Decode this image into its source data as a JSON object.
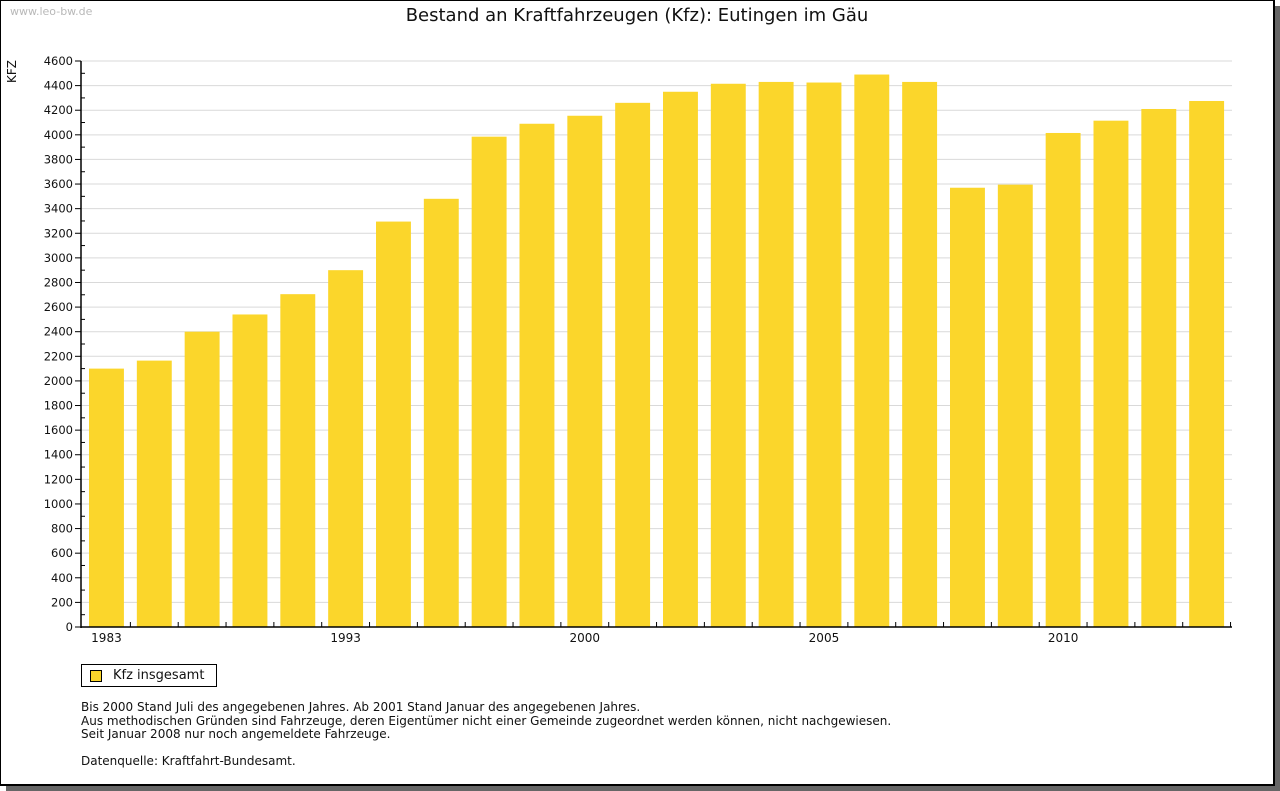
{
  "watermark": "www.leo-bw.de",
  "chart_data": {
    "type": "bar",
    "title": "Bestand an Kraftfahrzeugen (Kfz): Eutingen im Gäu",
    "xlabel": "",
    "ylabel": "KFZ",
    "ylim": [
      0,
      4600
    ],
    "yticks": [
      0,
      200,
      400,
      600,
      800,
      1000,
      1200,
      1400,
      1600,
      1800,
      2000,
      2200,
      2400,
      2600,
      2800,
      3000,
      3200,
      3400,
      3600,
      3800,
      4000,
      4200,
      4400,
      4600
    ],
    "grid": true,
    "legend_position": "bottom-left",
    "categories": [
      "1983",
      "",
      "",
      "",
      "",
      "1993",
      "",
      "",
      "",
      "",
      "2000",
      "",
      "",
      "",
      "",
      "2005",
      "",
      "",
      "",
      "",
      "2010",
      "",
      "",
      ""
    ],
    "series": [
      {
        "name": "Kfz insgesamt",
        "color": "#FBD62B",
        "values": [
          2100,
          2165,
          2400,
          2540,
          2705,
          2900,
          3295,
          3480,
          3985,
          4090,
          4155,
          4260,
          4350,
          4415,
          4430,
          4425,
          4490,
          4430,
          3570,
          3595,
          4015,
          4115,
          4210,
          4275
        ]
      }
    ]
  },
  "legend": {
    "label": "Kfz insgesamt"
  },
  "notes": [
    "Bis 2000 Stand Juli des angegebenen Jahres. Ab 2001 Stand Januar des angegebenen Jahres.",
    "Aus methodischen Gründen sind Fahrzeuge, deren Eigentümer nicht einer Gemeinde zugeordnet werden können, nicht nachgewiesen.",
    "Seit Januar 2008 nur noch angemeldete Fahrzeuge."
  ],
  "source": "Datenquelle: Kraftfahrt-Bundesamt."
}
